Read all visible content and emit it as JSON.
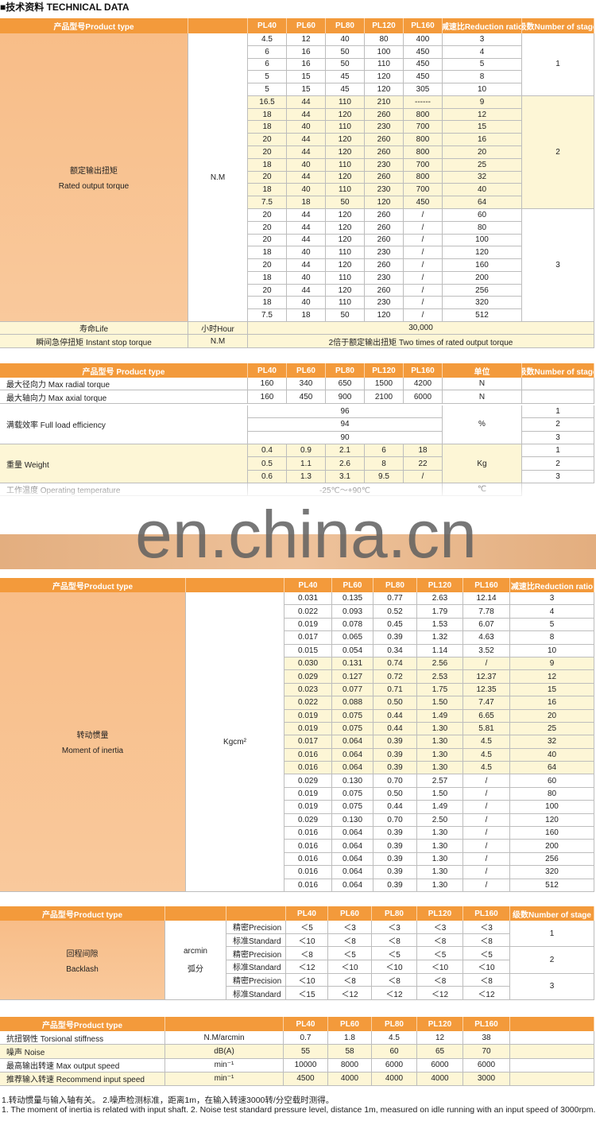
{
  "header": {
    "title": "■技术资料 TECHNICAL DATA"
  },
  "torque": {
    "columns": [
      "产品型号Product type",
      "PL40",
      "PL60",
      "PL80",
      "PL120",
      "PL160",
      "减速比Reduction ratio",
      "级数Number of stage"
    ],
    "label_cn": "额定输出扭矩",
    "label_en": "Rated output torque",
    "unit": "N.M",
    "groups": [
      {
        "stage": "1",
        "rows": [
          [
            "4.5",
            "12",
            "40",
            "80",
            "400",
            "3"
          ],
          [
            "6",
            "16",
            "50",
            "100",
            "450",
            "4"
          ],
          [
            "6",
            "16",
            "50",
            "110",
            "450",
            "5"
          ],
          [
            "5",
            "15",
            "45",
            "120",
            "450",
            "8"
          ],
          [
            "5",
            "15",
            "45",
            "120",
            "305",
            "10"
          ]
        ]
      },
      {
        "stage": "2",
        "rows": [
          [
            "16.5",
            "44",
            "110",
            "210",
            "------",
            "9"
          ],
          [
            "18",
            "44",
            "120",
            "260",
            "800",
            "12"
          ],
          [
            "18",
            "40",
            "110",
            "230",
            "700",
            "15"
          ],
          [
            "20",
            "44",
            "120",
            "260",
            "800",
            "16"
          ],
          [
            "20",
            "44",
            "120",
            "260",
            "800",
            "20"
          ],
          [
            "18",
            "40",
            "110",
            "230",
            "700",
            "25"
          ],
          [
            "20",
            "44",
            "120",
            "260",
            "800",
            "32"
          ],
          [
            "18",
            "40",
            "110",
            "230",
            "700",
            "40"
          ],
          [
            "7.5",
            "18",
            "50",
            "120",
            "450",
            "64"
          ]
        ]
      },
      {
        "stage": "3",
        "rows": [
          [
            "20",
            "44",
            "120",
            "260",
            "/",
            "60"
          ],
          [
            "20",
            "44",
            "120",
            "260",
            "/",
            "80"
          ],
          [
            "20",
            "44",
            "120",
            "260",
            "/",
            "100"
          ],
          [
            "18",
            "40",
            "110",
            "230",
            "/",
            "120"
          ],
          [
            "20",
            "44",
            "120",
            "260",
            "/",
            "160"
          ],
          [
            "18",
            "40",
            "110",
            "230",
            "/",
            "200"
          ],
          [
            "20",
            "44",
            "120",
            "260",
            "/",
            "256"
          ],
          [
            "18",
            "40",
            "110",
            "230",
            "/",
            "320"
          ],
          [
            "7.5",
            "18",
            "50",
            "120",
            "/",
            "512"
          ]
        ]
      }
    ],
    "life": {
      "label": "寿命Life",
      "unit": "小时Hour",
      "value": "30,000"
    },
    "instant": {
      "label": "瞬间急停扭矩 Instant stop torque",
      "unit": "N.M",
      "value": "2倍于额定输出扭矩 Two times of rated output torque"
    }
  },
  "spec": {
    "columns": [
      "产品型号 Product type",
      "PL40",
      "PL60",
      "PL80",
      "PL120",
      "PL160",
      "单位",
      "级数Number of stage"
    ],
    "forces": [
      {
        "label": "最大径向力 Max radial torque",
        "values": [
          "160",
          "340",
          "650",
          "1500",
          "4200"
        ],
        "unit": "N"
      },
      {
        "label": "最大轴向力 Max axial torque",
        "values": [
          "160",
          "450",
          "900",
          "2100",
          "6000"
        ],
        "unit": "N"
      }
    ],
    "efficiency": {
      "label": "满载效率 Full load efficiency",
      "values": [
        "96",
        "94",
        "90"
      ],
      "unit": "%",
      "stages": [
        "1",
        "2",
        "3"
      ]
    },
    "weight": {
      "label": "重量 Weight",
      "rows": [
        [
          "0.4",
          "0.9",
          "2.1",
          "6",
          "18"
        ],
        [
          "0.5",
          "1.1",
          "2.6",
          "8",
          "22"
        ],
        [
          "0.6",
          "1.3",
          "3.1",
          "9.5",
          "/"
        ]
      ],
      "unit": "Kg",
      "stages": [
        "1",
        "2",
        "3"
      ]
    },
    "temperature": {
      "label": "工作温度 Operating temperature",
      "value": "-25℃～+90℃",
      "unit": "℃"
    }
  },
  "watermark": "en.china.cn",
  "inertia": {
    "columns": [
      "产品型号Product type",
      "PL40",
      "PL60",
      "PL80",
      "PL120",
      "PL160",
      "减速比Reduction ratio"
    ],
    "label_cn": "转动惯量",
    "label_en": "Moment of inertia",
    "unit": "Kgcm²",
    "groups": [
      {
        "rows": [
          [
            "0.031",
            "0.135",
            "0.77",
            "2.63",
            "12.14",
            "3"
          ],
          [
            "0.022",
            "0.093",
            "0.52",
            "1.79",
            "7.78",
            "4"
          ],
          [
            "0.019",
            "0.078",
            "0.45",
            "1.53",
            "6.07",
            "5"
          ],
          [
            "0.017",
            "0.065",
            "0.39",
            "1.32",
            "4.63",
            "8"
          ],
          [
            "0.015",
            "0.054",
            "0.34",
            "1.14",
            "3.52",
            "10"
          ]
        ]
      },
      {
        "rows": [
          [
            "0.030",
            "0.131",
            "0.74",
            "2.56",
            "/",
            "9"
          ],
          [
            "0.029",
            "0.127",
            "0.72",
            "2.53",
            "12.37",
            "12"
          ],
          [
            "0.023",
            "0.077",
            "0.71",
            "1.75",
            "12.35",
            "15"
          ],
          [
            "0.022",
            "0.088",
            "0.50",
            "1.50",
            "7.47",
            "16"
          ],
          [
            "0.019",
            "0.075",
            "0.44",
            "1.49",
            "6.65",
            "20"
          ],
          [
            "0.019",
            "0.075",
            "0.44",
            "1.30",
            "5.81",
            "25"
          ],
          [
            "0.017",
            "0.064",
            "0.39",
            "1.30",
            "4.5",
            "32"
          ],
          [
            "0.016",
            "0.064",
            "0.39",
            "1.30",
            "4.5",
            "40"
          ],
          [
            "0.016",
            "0.064",
            "0.39",
            "1.30",
            "4.5",
            "64"
          ]
        ]
      },
      {
        "rows": [
          [
            "0.029",
            "0.130",
            "0.70",
            "2.57",
            "/",
            "60"
          ],
          [
            "0.019",
            "0.075",
            "0.50",
            "1.50",
            "/",
            "80"
          ],
          [
            "0.019",
            "0.075",
            "0.44",
            "1.49",
            "/",
            "100"
          ],
          [
            "0.029",
            "0.130",
            "0.70",
            "2.50",
            "/",
            "120"
          ],
          [
            "0.016",
            "0.064",
            "0.39",
            "1.30",
            "/",
            "160"
          ],
          [
            "0.016",
            "0.064",
            "0.39",
            "1.30",
            "/",
            "200"
          ],
          [
            "0.016",
            "0.064",
            "0.39",
            "1.30",
            "/",
            "256"
          ],
          [
            "0.016",
            "0.064",
            "0.39",
            "1.30",
            "/",
            "320"
          ],
          [
            "0.016",
            "0.064",
            "0.39",
            "1.30",
            "/",
            "512"
          ]
        ]
      }
    ]
  },
  "backlash": {
    "columns": [
      "产品型号Product type",
      "PL40",
      "PL60",
      "PL80",
      "PL120",
      "PL160",
      "级数Number of stage"
    ],
    "label_cn": "回程间隙",
    "label_en": "Backlash",
    "unit_en": "arcmin",
    "unit_cn": "弧分",
    "groups": [
      {
        "stage": "1",
        "rows": [
          {
            "grade": "精密Precision",
            "values": [
              "＜5",
              "＜3",
              "＜3",
              "＜3",
              "＜3"
            ]
          },
          {
            "grade": "标准Standard",
            "values": [
              "＜10",
              "＜8",
              "＜8",
              "＜8",
              "＜8"
            ]
          }
        ]
      },
      {
        "stage": "2",
        "rows": [
          {
            "grade": "精密Precision",
            "values": [
              "＜8",
              "＜5",
              "＜5",
              "＜5",
              "＜5"
            ]
          },
          {
            "grade": "标准Standard",
            "values": [
              "＜12",
              "＜10",
              "＜10",
              "＜10",
              "＜10"
            ]
          }
        ]
      },
      {
        "stage": "3",
        "rows": [
          {
            "grade": "精密Precision",
            "values": [
              "＜10",
              "＜8",
              "＜8",
              "＜8",
              "＜8"
            ]
          },
          {
            "grade": "标准Standard",
            "values": [
              "＜15",
              "＜12",
              "＜12",
              "＜12",
              "＜12"
            ]
          }
        ]
      }
    ]
  },
  "misc": {
    "columns": [
      "产品型号Product type",
      "PL40",
      "PL60",
      "PL80",
      "PL120",
      "PL160"
    ],
    "rows": [
      {
        "label": "抗扭钢性 Torsional stiffness",
        "unit": "N.M/arcmin",
        "values": [
          "0.7",
          "1.8",
          "4.5",
          "12",
          "38"
        ]
      },
      {
        "label": "噪声 Noise",
        "unit": "dB(A)",
        "values": [
          "55",
          "58",
          "60",
          "65",
          "70"
        ]
      },
      {
        "label": "最高输出转速 Max output speed",
        "unit": "min⁻¹",
        "values": [
          "10000",
          "8000",
          "6000",
          "6000",
          "6000"
        ]
      },
      {
        "label": "推荐输入转速 Recommend input speed",
        "unit": "min⁻¹",
        "values": [
          "4500",
          "4000",
          "4000",
          "4000",
          "3000"
        ]
      }
    ]
  },
  "notes": [
    "1.转动惯量与输入轴有关。 2.噪声检测标准，距离1m，在输入转速3000转/分空载时测得。",
    "1. The moment of inertia is related with input shaft.    2. Noise test standard pressure level, distance 1m, measured on idle running with an input speed of 3000rpm."
  ]
}
